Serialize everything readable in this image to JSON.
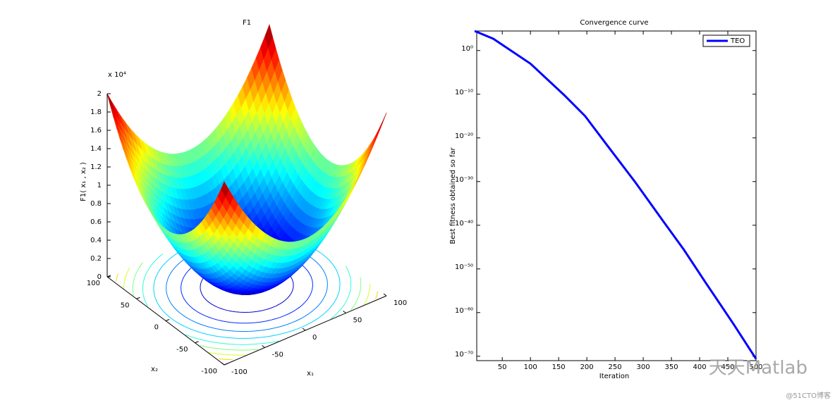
{
  "chart_data": [
    {
      "type": "surface",
      "title": "F1",
      "zlabel": "F1( x₁ , x₂ )",
      "xlabel": "x₁",
      "ylabel": "x₂",
      "zexponent": "x 10⁴",
      "xlim": [
        -100,
        100
      ],
      "ylim": [
        -100,
        100
      ],
      "zlim": [
        0,
        2
      ],
      "xticks": [
        -100,
        -50,
        0,
        50,
        100
      ],
      "yticks": [
        -100,
        -50,
        0,
        50,
        100
      ],
      "zticks": [
        0,
        0.2,
        0.4,
        0.6,
        0.8,
        1,
        1.2,
        1.4,
        1.6,
        1.8,
        2
      ],
      "colormap": "jet"
    },
    {
      "type": "line",
      "title": "Convergence curve",
      "xlabel": "Iteration",
      "ylabel": "Best fitness obtained so far",
      "log_y": true,
      "grid": false,
      "legend": "northeast",
      "x": [
        1,
        10,
        34,
        100,
        160,
        197,
        235,
        285,
        335,
        372,
        410,
        460,
        500
      ],
      "series": [
        {
          "name": "TEO",
          "color": "#0000ff",
          "values": [
            30000.0,
            10000.0,
            500.0,
            0.001,
            6e-11,
            1e-15,
            3e-22,
            1e-30,
            1e-39,
            2.5e-46,
            1e-53,
            2.5e-63,
            2.5e-71
          ]
        }
      ],
      "xlim": [
        1,
        500
      ],
      "ylim": [
        1e-71,
        30000.0
      ],
      "xticks": [
        50,
        100,
        150,
        200,
        250,
        300,
        350,
        400,
        450,
        500
      ],
      "yticks": [
        {
          "value": 1e-70,
          "label": "10⁻⁷⁰"
        },
        {
          "value": 1e-60,
          "label": "10⁻⁶⁰"
        },
        {
          "value": 1e-50,
          "label": "10⁻⁵⁰"
        },
        {
          "value": 1e-40,
          "label": "10⁻⁴⁰"
        },
        {
          "value": 1e-30,
          "label": "10⁻³⁰"
        },
        {
          "value": 1e-20,
          "label": "10⁻²⁰"
        },
        {
          "value": 1e-10,
          "label": "10⁻¹⁰"
        },
        {
          "value": 1,
          "label": "10⁰"
        }
      ]
    }
  ],
  "watermark": {
    "text": "天天Matlab",
    "source": "@51CTO博客"
  }
}
